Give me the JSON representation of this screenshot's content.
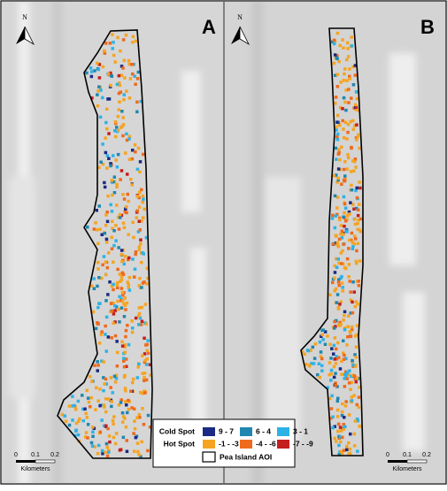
{
  "panels": [
    {
      "label": "A",
      "north": "N",
      "scale": {
        "ticks": [
          "0",
          "0.1",
          "0.2"
        ],
        "unit": "Kilometers"
      }
    },
    {
      "label": "B",
      "north": "N",
      "scale": {
        "ticks": [
          "0",
          "0.1",
          "0.2"
        ],
        "unit": "Kilometers"
      }
    }
  ],
  "legend": {
    "groups": [
      {
        "title": "Cold Spot",
        "items": [
          {
            "label": "9 - 7",
            "color": "#1b2a84"
          },
          {
            "label": "6 - 4",
            "color": "#1f87b0"
          },
          {
            "label": "3 - 1",
            "color": "#2db2e6"
          }
        ]
      },
      {
        "title": "Hot Spot",
        "items": [
          {
            "label": "-1 - -3",
            "color": "#f5a421"
          },
          {
            "label": "-4 - -6",
            "color": "#ef6a1c"
          },
          {
            "label": "-7 - -9",
            "color": "#c41e1e"
          }
        ]
      }
    ],
    "aoi": "Pea Island AOI"
  }
}
